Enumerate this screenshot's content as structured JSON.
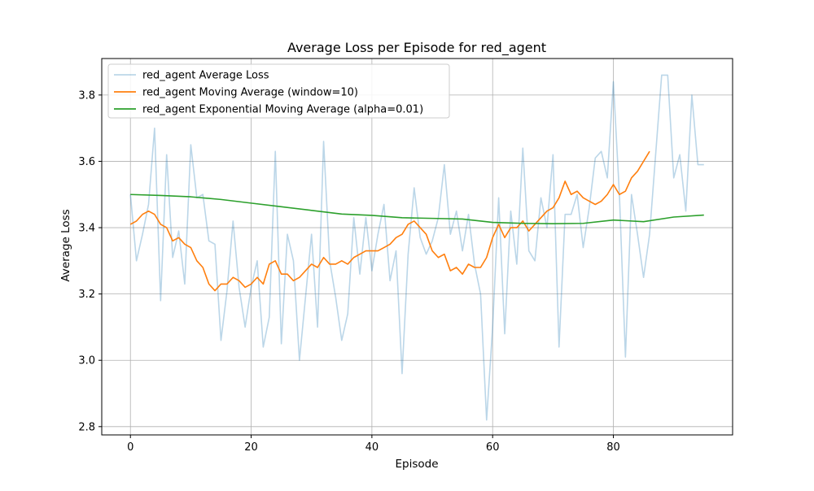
{
  "chart_data": {
    "type": "line",
    "title": "Average Loss per Episode for red_agent",
    "xlabel": "Episode",
    "ylabel": "Average Loss",
    "xlim": [
      -4.75,
      99.75
    ],
    "ylim": [
      2.775,
      3.91
    ],
    "xticks": [
      0,
      20,
      40,
      60,
      80
    ],
    "yticks": [
      2.8,
      3.0,
      3.2,
      3.4,
      3.6,
      3.8
    ],
    "xtick_labels": [
      "0",
      "20",
      "40",
      "60",
      "80"
    ],
    "ytick_labels": [
      "2.8",
      "3.0",
      "3.2",
      "3.4",
      "3.6",
      "3.8"
    ],
    "grid": true,
    "legend_position": "top-left",
    "series": [
      {
        "name": "red_agent Average Loss",
        "color": "#1f77b4",
        "opacity": 0.3,
        "x": [
          0,
          1,
          2,
          3,
          4,
          5,
          6,
          7,
          8,
          9,
          10,
          11,
          12,
          13,
          14,
          15,
          16,
          17,
          18,
          19,
          20,
          21,
          22,
          23,
          24,
          25,
          26,
          27,
          28,
          29,
          30,
          31,
          32,
          33,
          34,
          35,
          36,
          37,
          38,
          39,
          40,
          41,
          42,
          43,
          44,
          45,
          46,
          47,
          48,
          49,
          50,
          51,
          52,
          53,
          54,
          55,
          56,
          57,
          58,
          59,
          60,
          61,
          62,
          63,
          64,
          65,
          66,
          67,
          68,
          69,
          70,
          71,
          72,
          73,
          74,
          75,
          76,
          77,
          78,
          79,
          80,
          81,
          82,
          83,
          84,
          85,
          86,
          87,
          88,
          89,
          90,
          91,
          92,
          93,
          94,
          95
        ],
        "values": [
          3.5,
          3.3,
          3.38,
          3.47,
          3.7,
          3.18,
          3.62,
          3.31,
          3.39,
          3.23,
          3.65,
          3.49,
          3.5,
          3.36,
          3.35,
          3.06,
          3.21,
          3.42,
          3.22,
          3.1,
          3.22,
          3.3,
          3.04,
          3.13,
          3.63,
          3.05,
          3.38,
          3.3,
          3.0,
          3.19,
          3.38,
          3.1,
          3.66,
          3.3,
          3.19,
          3.06,
          3.14,
          3.43,
          3.26,
          3.43,
          3.27,
          3.38,
          3.47,
          3.24,
          3.33,
          2.96,
          3.32,
          3.52,
          3.37,
          3.32,
          3.36,
          3.43,
          3.59,
          3.38,
          3.45,
          3.33,
          3.44,
          3.29,
          3.2,
          2.82,
          3.1,
          3.49,
          3.08,
          3.45,
          3.29,
          3.64,
          3.33,
          3.3,
          3.49,
          3.4,
          3.62,
          3.04,
          3.44,
          3.44,
          3.5,
          3.34,
          3.46,
          3.61,
          3.63,
          3.55,
          3.84,
          3.5,
          3.01,
          3.5,
          3.38,
          3.25,
          3.38,
          3.62,
          3.86,
          3.86,
          3.55,
          3.62,
          3.45,
          3.8,
          3.59,
          3.59
        ]
      },
      {
        "name": "red_agent Moving Average (window=10)",
        "color": "#ff7f0e",
        "opacity": 1,
        "x": [
          0,
          1,
          2,
          3,
          4,
          5,
          6,
          7,
          8,
          9,
          10,
          11,
          12,
          13,
          14,
          15,
          16,
          17,
          18,
          19,
          20,
          21,
          22,
          23,
          24,
          25,
          26,
          27,
          28,
          29,
          30,
          31,
          32,
          33,
          34,
          35,
          36,
          37,
          38,
          39,
          40,
          41,
          42,
          43,
          44,
          45,
          46,
          47,
          48,
          49,
          50,
          51,
          52,
          53,
          54,
          55,
          56,
          57,
          58,
          59,
          60,
          61,
          62,
          63,
          64,
          65,
          66,
          67,
          68,
          69,
          70,
          71,
          72,
          73,
          74,
          75,
          76,
          77,
          78,
          79,
          80,
          81,
          82,
          83,
          84,
          85,
          86
        ],
        "values": [
          3.41,
          3.42,
          3.44,
          3.45,
          3.44,
          3.41,
          3.4,
          3.36,
          3.37,
          3.35,
          3.34,
          3.3,
          3.28,
          3.23,
          3.21,
          3.23,
          3.23,
          3.25,
          3.24,
          3.22,
          3.23,
          3.25,
          3.23,
          3.29,
          3.3,
          3.26,
          3.26,
          3.24,
          3.25,
          3.27,
          3.29,
          3.28,
          3.31,
          3.29,
          3.29,
          3.3,
          3.29,
          3.31,
          3.32,
          3.33,
          3.33,
          3.33,
          3.34,
          3.35,
          3.37,
          3.38,
          3.41,
          3.42,
          3.4,
          3.38,
          3.33,
          3.31,
          3.32,
          3.27,
          3.28,
          3.26,
          3.29,
          3.28,
          3.28,
          3.31,
          3.37,
          3.41,
          3.37,
          3.4,
          3.4,
          3.42,
          3.39,
          3.41,
          3.43,
          3.45,
          3.46,
          3.49,
          3.54,
          3.5,
          3.51,
          3.49,
          3.48,
          3.47,
          3.48,
          3.5,
          3.53,
          3.5,
          3.51,
          3.55,
          3.57,
          3.6,
          3.63
        ]
      },
      {
        "name": "red_agent Exponential Moving Average (alpha=0.01)",
        "color": "#2ca02c",
        "opacity": 1,
        "x": [
          0,
          5,
          10,
          15,
          20,
          25,
          30,
          35,
          40,
          45,
          50,
          55,
          60,
          65,
          70,
          75,
          80,
          85,
          90,
          95
        ],
        "values": [
          3.5,
          3.497,
          3.493,
          3.485,
          3.474,
          3.463,
          3.452,
          3.441,
          3.437,
          3.43,
          3.428,
          3.426,
          3.416,
          3.413,
          3.412,
          3.413,
          3.423,
          3.418,
          3.432,
          3.438
        ]
      }
    ]
  }
}
